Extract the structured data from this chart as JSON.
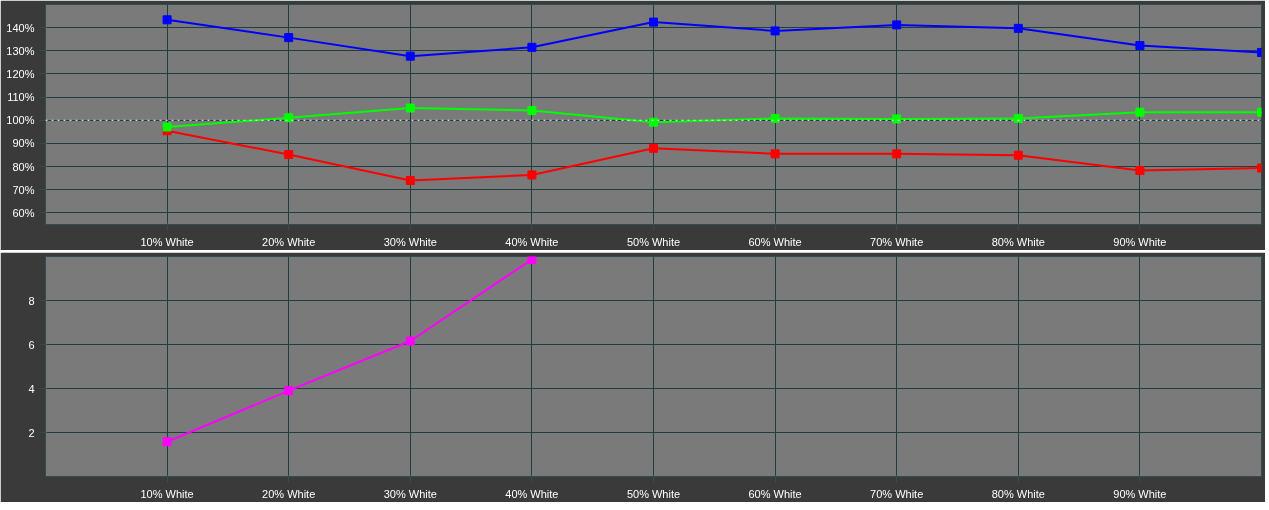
{
  "chart_data": [
    {
      "type": "line",
      "x": [
        10,
        20,
        30,
        40,
        50,
        60,
        70,
        80,
        90,
        100
      ],
      "xlim": [
        0,
        100
      ],
      "xticks": [
        {
          "value": 10,
          "label": "10% White"
        },
        {
          "value": 20,
          "label": "20% White"
        },
        {
          "value": 30,
          "label": "30% White"
        },
        {
          "value": 40,
          "label": "40% White"
        },
        {
          "value": 50,
          "label": "50% White"
        },
        {
          "value": 60,
          "label": "60% White"
        },
        {
          "value": 70,
          "label": "70% White"
        },
        {
          "value": 80,
          "label": "80% White"
        },
        {
          "value": 90,
          "label": "90% White"
        }
      ],
      "ylim": [
        55,
        150
      ],
      "yticks": [
        {
          "value": 60,
          "label": "60%"
        },
        {
          "value": 70,
          "label": "70%"
        },
        {
          "value": 80,
          "label": "80%"
        },
        {
          "value": 90,
          "label": "90%"
        },
        {
          "value": 100,
          "label": "100%"
        },
        {
          "value": 110,
          "label": "110%"
        },
        {
          "value": 120,
          "label": "120%"
        },
        {
          "value": 130,
          "label": "130%"
        },
        {
          "value": 140,
          "label": "140%"
        }
      ],
      "grid": true,
      "marker": "square",
      "line_style": "solid",
      "series": [
        {
          "color": "#0000ff",
          "values": [
            143.4,
            135.7,
            127.7,
            131.5,
            142.4,
            138.6,
            141.2,
            139.7,
            132.3,
            129.3
          ]
        },
        {
          "color": "#00ff00",
          "values": [
            97.1,
            101.1,
            105.3,
            104.2,
            99.2,
            100.8,
            100.6,
            100.8,
            103.5,
            103.5
          ]
        },
        {
          "color": "#ff0000",
          "values": [
            95.5,
            85.2,
            74.0,
            76.4,
            87.9,
            85.5,
            85.5,
            84.9,
            78.3,
            79.4
          ]
        }
      ],
      "ref_lines": [
        {
          "axis": "y",
          "value": 100,
          "color": "#ffffff",
          "line_style": "dotted"
        }
      ]
    },
    {
      "type": "line",
      "x": [
        10,
        20,
        30,
        40
      ],
      "xlim": [
        0,
        100
      ],
      "xticks": [
        {
          "value": 10,
          "label": "10% White"
        },
        {
          "value": 20,
          "label": "20% White"
        },
        {
          "value": 30,
          "label": "30% White"
        },
        {
          "value": 40,
          "label": "40% White"
        },
        {
          "value": 50,
          "label": "50% White"
        },
        {
          "value": 60,
          "label": "60% White"
        },
        {
          "value": 70,
          "label": "70% White"
        },
        {
          "value": 80,
          "label": "80% White"
        },
        {
          "value": 90,
          "label": "90% White"
        }
      ],
      "ylim": [
        0,
        10
      ],
      "yticks": [
        2,
        4,
        6,
        8
      ],
      "grid": true,
      "marker": "square",
      "line_style": "solid",
      "series": [
        {
          "color": "#ff00ff",
          "values": [
            1.58,
            3.9,
            6.16,
            9.87
          ]
        }
      ]
    }
  ]
}
